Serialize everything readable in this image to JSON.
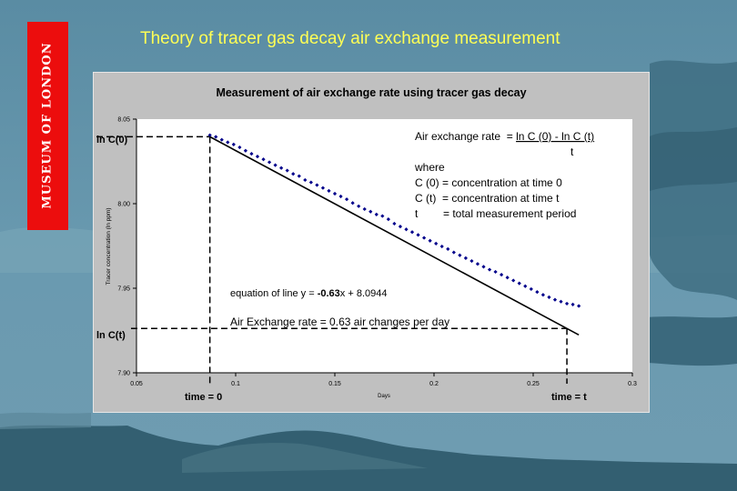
{
  "slide": {
    "title": "Theory of tracer gas decay air exchange measurement",
    "logo_text": "MUSEUM OF LONDON",
    "colors": {
      "background": "#5f90a6",
      "title": "#ffff55",
      "logo": "#ec0d0d",
      "panel": "#c0c0c0",
      "plot_area": "#ffffff",
      "points": "#00008b"
    }
  },
  "chart_data": {
    "type": "scatter",
    "title": "Measurement of air exchange rate using tracer gas decay",
    "xlabel": "Days",
    "ylabel": "Tracer concentration (ln ppm)",
    "xlim": [
      0.05,
      0.3
    ],
    "ylim": [
      7.9,
      8.05
    ],
    "xticks": [
      "0.05",
      "0.1",
      "0.15",
      "0.2",
      "0.25",
      "0.3"
    ],
    "yticks": [
      "8.05",
      "8.00",
      "7.95",
      "7.90"
    ],
    "grid": false,
    "series": [
      {
        "marker": "diamond",
        "x": [
          0.087,
          0.09,
          0.093,
          0.096,
          0.099,
          0.102,
          0.105,
          0.108,
          0.111,
          0.114,
          0.117,
          0.12,
          0.123,
          0.126,
          0.129,
          0.132,
          0.135,
          0.138,
          0.141,
          0.144,
          0.147,
          0.15,
          0.153,
          0.156,
          0.159,
          0.162,
          0.165,
          0.168,
          0.171,
          0.174,
          0.177,
          0.18,
          0.183,
          0.186,
          0.189,
          0.192,
          0.195,
          0.198,
          0.201,
          0.204,
          0.207,
          0.21,
          0.213,
          0.216,
          0.219,
          0.222,
          0.225,
          0.228,
          0.231,
          0.234,
          0.237,
          0.24,
          0.243,
          0.246,
          0.249,
          0.252,
          0.255,
          0.258,
          0.261,
          0.264,
          0.267,
          0.27,
          0.273
        ],
        "y": [
          8.0405,
          8.0395,
          8.0378,
          8.0363,
          8.035,
          8.0333,
          8.0313,
          8.0295,
          8.0279,
          8.0262,
          8.0245,
          8.0228,
          8.0211,
          8.0196,
          8.0176,
          8.0163,
          8.014,
          8.0126,
          8.011,
          8.0093,
          8.0076,
          8.0059,
          8.0043,
          8.0026,
          8.0004,
          7.9985,
          7.9968,
          7.9953,
          7.9936,
          7.9927,
          7.9908,
          7.9882,
          7.9865,
          7.9848,
          7.9832,
          7.9815,
          7.9798,
          7.9781,
          7.9764,
          7.9747,
          7.9732,
          7.9712,
          7.9695,
          7.9678,
          7.9661,
          7.9644,
          7.9627,
          7.961,
          7.9597,
          7.958,
          7.9563,
          7.9546,
          7.9529,
          7.9512,
          7.9495,
          7.9478,
          7.9461,
          7.9447,
          7.9432,
          7.9421,
          7.9409,
          7.9404,
          7.9395
        ]
      }
    ],
    "trendline": {
      "slope": -0.63,
      "intercept": 8.0944,
      "x_range": [
        0.087,
        0.273
      ]
    },
    "guides": {
      "x_start": 0.087,
      "x_end": 0.267,
      "y_start": 8.0396,
      "y_end": 7.9262,
      "y_start_label": "ln C(0)",
      "y_end_label": "ln C(t)",
      "x_start_label": "time = 0",
      "x_end_label": "time = t"
    },
    "annotations": {
      "formula_lhs": "Air exchange rate  = ",
      "formula_numerator": "ln C (0) - ln C (t)",
      "formula_denominator": "t",
      "where": "where",
      "def1": "C (0) = concentration at time 0",
      "def2": "C (t)  = concentration at time t",
      "def3_sym": "t",
      "def3_text": "= total measurement period",
      "equation_prefix": "equation of line y = ",
      "equation_slope": "-0.63",
      "equation_suffix": "x + 8.0944",
      "rate": "Air Exchange rate = 0.63 air changes per day"
    }
  }
}
